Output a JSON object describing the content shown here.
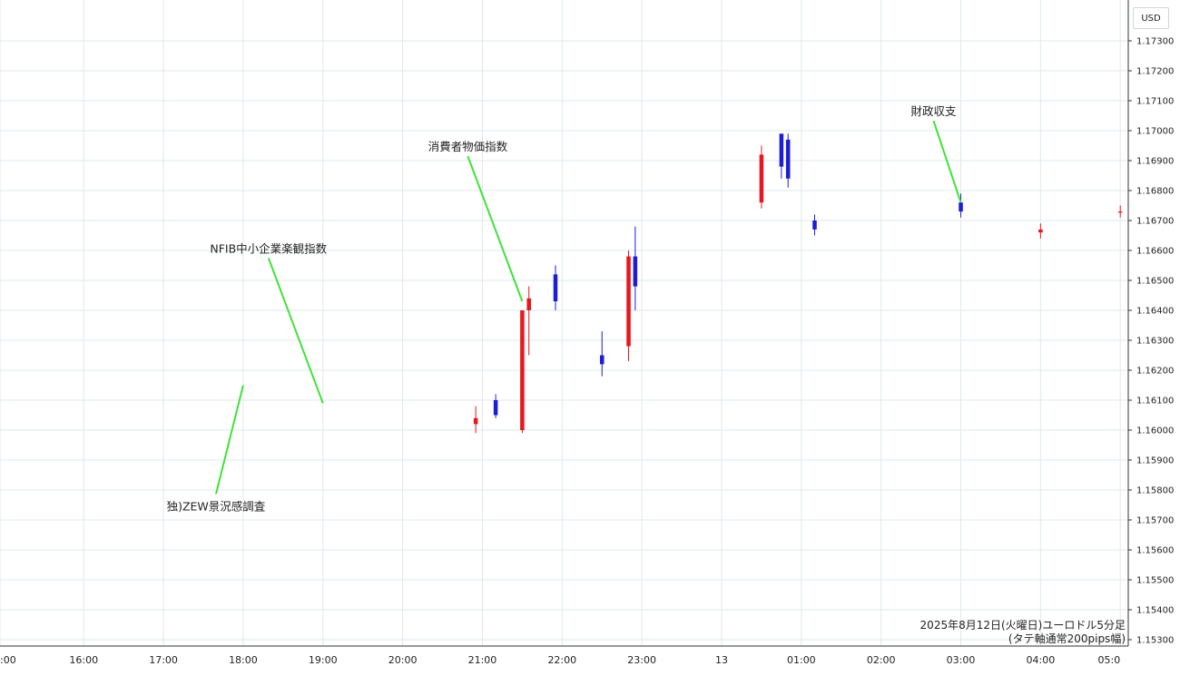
{
  "currency_button": "USD",
  "chart_data": {
    "type": "candlestick",
    "title": "",
    "caption_line1": "2025年8月12日(火曜日)ユーロドル5分足",
    "caption_line2": "(タテ軸通常200pips幅)",
    "colors": {
      "up": "#e8171d",
      "down": "#1d1dd6",
      "grid": "#dfe9ec",
      "annotation_line": "#3ee33a"
    },
    "ylim": [
      1.153,
      1.174
    ],
    "y_ticks": [
      "1.17300",
      "1.17200",
      "1.17100",
      "1.17000",
      "1.16900",
      "1.16800",
      "1.16700",
      "1.16600",
      "1.16500",
      "1.16400",
      "1.16300",
      "1.16200",
      "1.16100",
      "1.16000",
      "1.15900",
      "1.15800",
      "1.15700",
      "1.15600",
      "1.15500",
      "1.15400",
      "1.15300"
    ],
    "x_ticks": [
      {
        "label": ":00",
        "t": 14.95
      },
      {
        "label": "16:00",
        "t": 16
      },
      {
        "label": "17:00",
        "t": 17
      },
      {
        "label": "18:00",
        "t": 18
      },
      {
        "label": "19:00",
        "t": 19
      },
      {
        "label": "20:00",
        "t": 20
      },
      {
        "label": "21:00",
        "t": 21
      },
      {
        "label": "22:00",
        "t": 22
      },
      {
        "label": "23:00",
        "t": 23
      },
      {
        "label": "13",
        "t": 24
      },
      {
        "label": "01:00",
        "t": 25
      },
      {
        "label": "02:00",
        "t": 26
      },
      {
        "label": "03:00",
        "t": 27
      },
      {
        "label": "04:00",
        "t": 28
      },
      {
        "label": "05:0",
        "t": 29
      }
    ],
    "key_candles": [
      {
        "time": "20:55",
        "open": 1.1602,
        "high": 1.1608,
        "low": 1.1599,
        "close": 1.1604
      },
      {
        "time": "21:10",
        "open": 1.161,
        "high": 1.1612,
        "low": 1.1604,
        "close": 1.1605
      },
      {
        "time": "21:30",
        "open": 1.16,
        "high": 1.1609,
        "low": 1.1599,
        "close": 1.164
      },
      {
        "time": "21:35",
        "open": 1.164,
        "high": 1.1648,
        "low": 1.1625,
        "close": 1.1644
      },
      {
        "time": "21:55",
        "open": 1.1652,
        "high": 1.1655,
        "low": 1.164,
        "close": 1.1643
      },
      {
        "time": "22:30",
        "open": 1.1625,
        "high": 1.1633,
        "low": 1.1618,
        "close": 1.1622
      },
      {
        "time": "22:50",
        "open": 1.1628,
        "high": 1.166,
        "low": 1.1623,
        "close": 1.1658
      },
      {
        "time": "22:55",
        "open": 1.1658,
        "high": 1.1668,
        "low": 1.164,
        "close": 1.1648
      },
      {
        "time": "00:30",
        "open": 1.1676,
        "high": 1.1695,
        "low": 1.1674,
        "close": 1.1692
      },
      {
        "time": "00:45",
        "open": 1.1699,
        "high": 1.1697,
        "low": 1.1684,
        "close": 1.1688
      },
      {
        "time": "00:50",
        "open": 1.1697,
        "high": 1.1699,
        "low": 1.1681,
        "close": 1.1684
      },
      {
        "time": "01:10",
        "open": 1.167,
        "high": 1.1672,
        "low": 1.1665,
        "close": 1.1667
      },
      {
        "time": "03:00",
        "open": 1.1676,
        "high": 1.1679,
        "low": 1.1671,
        "close": 1.1673
      },
      {
        "time": "04:00",
        "open": 1.1666,
        "high": 1.1669,
        "low": 1.1664,
        "close": 1.1667
      },
      {
        "time": "05:00",
        "open": 1.1673,
        "high": 1.1675,
        "low": 1.1671,
        "close": 1.1673
      }
    ],
    "annotations": [
      {
        "text": "NFIB中小企業楽観指数",
        "at": {
          "time": "19:00",
          "price": 1.1609
        },
        "label_pos": "above"
      },
      {
        "text": "独)ZEW景況感調査",
        "at": {
          "time": "18:00",
          "price": 1.1615
        },
        "label_pos": "below"
      },
      {
        "text": "消費者物価指数",
        "at": {
          "time": "21:30",
          "price": 1.1643
        },
        "label_pos": "above"
      },
      {
        "text": "財政収支",
        "at": {
          "time": "03:00",
          "price": 1.1676
        },
        "label_pos": "above"
      }
    ]
  }
}
